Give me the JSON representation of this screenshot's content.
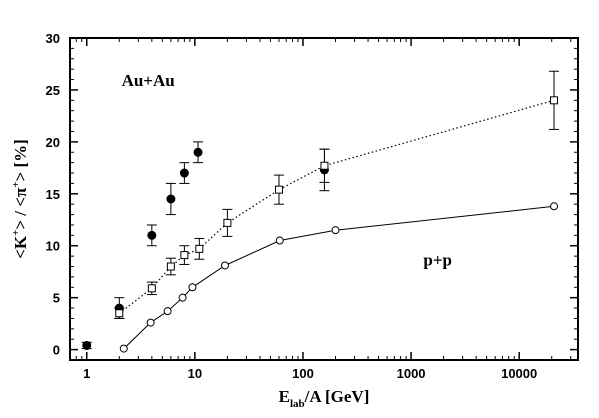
{
  "chart_data": {
    "type": "scatter",
    "title": "",
    "xlabel": {
      "base": "E",
      "sub": "lab",
      "rest": "/A [GeV]"
    },
    "ylabel": {
      "a": "<K",
      "sup1": "+",
      "b": "> / <π",
      "sup2": "+",
      "c": "> [%]"
    },
    "xscale": "log",
    "xlim": [
      0.7,
      35000
    ],
    "ylim": [
      -1,
      30
    ],
    "xticks": [
      1,
      10,
      100,
      1000,
      10000
    ],
    "xtick_labels": [
      "1",
      "10",
      "100",
      "1000",
      "10000"
    ],
    "yticks": [
      0,
      5,
      10,
      15,
      20,
      25,
      30
    ],
    "ytick_labels": [
      "0",
      "5",
      "10",
      "15",
      "20",
      "25",
      "30"
    ],
    "grid": false,
    "annotations": [
      {
        "text": "Au+Au",
        "x": 2.1,
        "y": 25.4
      },
      {
        "text": "p+p",
        "x": 1300,
        "y": 8.1
      }
    ],
    "series": [
      {
        "marker": "filled-circle",
        "line": "none",
        "color": "#000000",
        "points": [
          {
            "x": 1.0,
            "y": 0.4,
            "err": 0.3
          },
          {
            "x": 2.0,
            "y": 4.0,
            "err": 1.0
          },
          {
            "x": 4.0,
            "y": 11.0,
            "err": 1.0
          },
          {
            "x": 6.0,
            "y": 14.5,
            "err": 1.5
          },
          {
            "x": 8.0,
            "y": 17.0,
            "err": 1.0
          },
          {
            "x": 10.7,
            "y": 19.0,
            "err": 1.0
          },
          {
            "x": 158,
            "y": 17.3,
            "err": 2.0
          }
        ]
      },
      {
        "marker": "open-square",
        "line": "dotted",
        "color": "#000000",
        "points": [
          {
            "x": 2.0,
            "y": 3.5,
            "err": 0.5
          },
          {
            "x": 4.0,
            "y": 5.9,
            "err": 0.6
          },
          {
            "x": 6.0,
            "y": 8.0,
            "err": 0.8
          },
          {
            "x": 8.0,
            "y": 9.1,
            "err": 0.9
          },
          {
            "x": 11.0,
            "y": 9.7,
            "err": 1.0
          },
          {
            "x": 20.0,
            "y": 12.2,
            "err": 1.3
          },
          {
            "x": 60.0,
            "y": 15.4,
            "err": 1.4
          },
          {
            "x": 158,
            "y": 17.7,
            "err": 1.6
          },
          {
            "x": 21000,
            "y": 24.0,
            "err": 2.8
          }
        ]
      },
      {
        "marker": "open-circle",
        "line": "solid",
        "color": "#000000",
        "points": [
          {
            "x": 2.2,
            "y": 0.1
          },
          {
            "x": 3.9,
            "y": 2.6
          },
          {
            "x": 5.6,
            "y": 3.7
          },
          {
            "x": 7.7,
            "y": 5.0
          },
          {
            "x": 9.5,
            "y": 6.0
          },
          {
            "x": 19.0,
            "y": 8.1
          },
          {
            "x": 61.0,
            "y": 10.5
          },
          {
            "x": 200,
            "y": 11.5
          },
          {
            "x": 21000,
            "y": 13.8
          }
        ]
      }
    ]
  }
}
